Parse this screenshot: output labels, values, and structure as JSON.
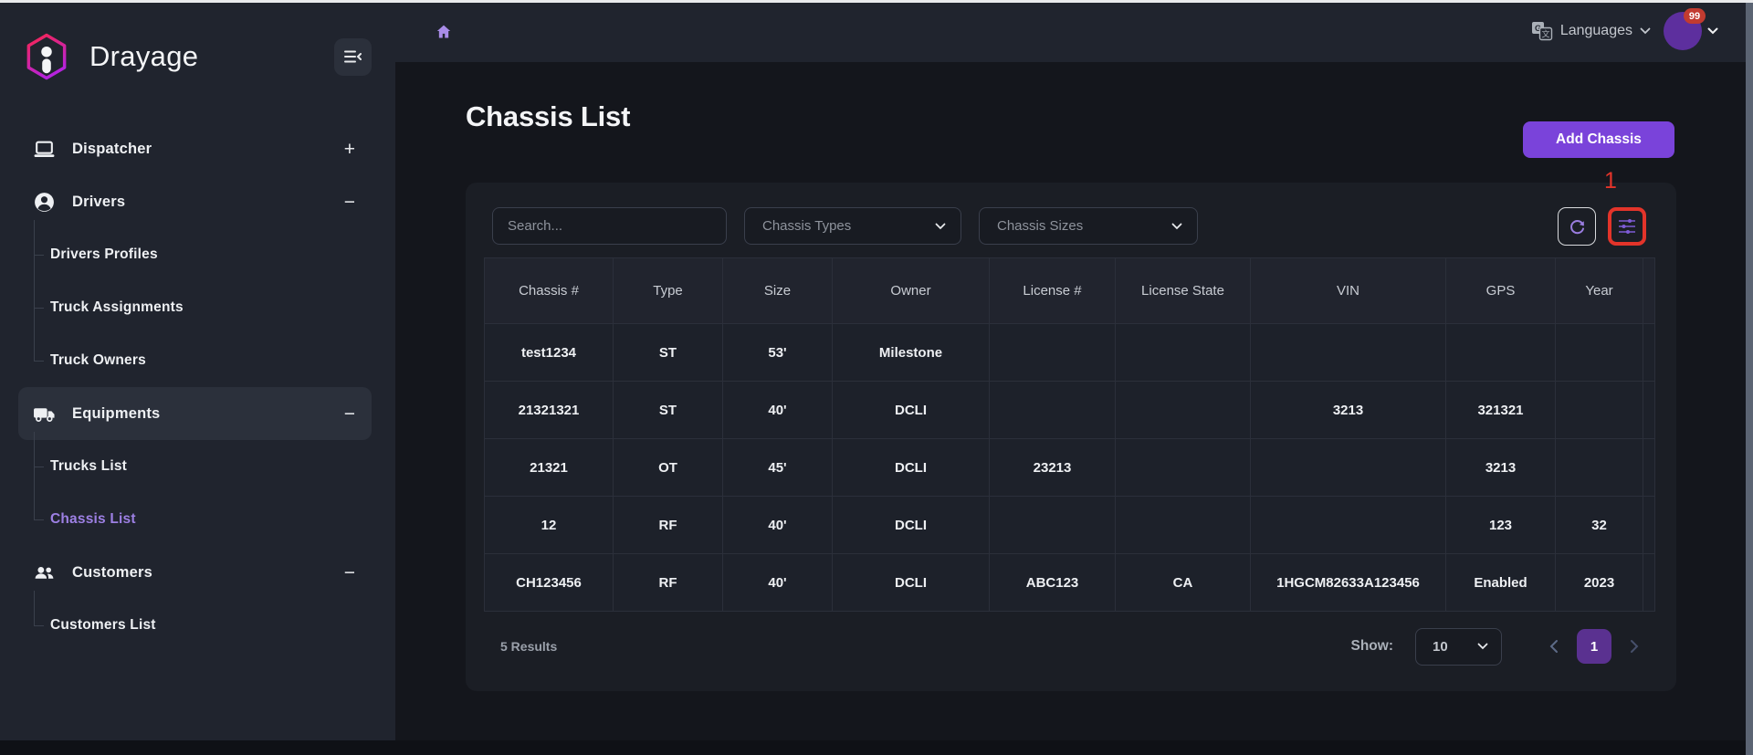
{
  "brand": {
    "name": "Drayage"
  },
  "topbar": {
    "languages_label": "Languages",
    "avatar_badge": "99"
  },
  "sidebar": {
    "items": [
      {
        "label": "Dispatcher",
        "icon": "laptop",
        "toggle": "+",
        "children": []
      },
      {
        "label": "Drivers",
        "icon": "person",
        "toggle": "−",
        "children": [
          "Drivers Profiles",
          "Truck Assignments",
          "Truck Owners"
        ]
      },
      {
        "label": "Equipments",
        "icon": "truck",
        "toggle": "−",
        "children": [
          "Trucks List",
          "Chassis List"
        ]
      },
      {
        "label": "Customers",
        "icon": "people",
        "toggle": "−",
        "children": [
          "Customers List"
        ]
      }
    ],
    "active_item": "Equipments",
    "active_child": "Chassis List"
  },
  "page": {
    "title": "Chassis List",
    "add_button_label": "Add Chassis"
  },
  "filters": {
    "search_placeholder": "Search...",
    "type_select_value": "Chassis Types",
    "size_select_value": "Chassis Sizes"
  },
  "annotation": {
    "label": "1"
  },
  "table": {
    "columns": [
      "Chassis #",
      "Type",
      "Size",
      "Owner",
      "License #",
      "License State",
      "VIN",
      "GPS",
      "Year"
    ],
    "rows": [
      [
        "test1234",
        "ST",
        "53'",
        "Milestone",
        "",
        "",
        "",
        "",
        ""
      ],
      [
        "21321321",
        "ST",
        "40'",
        "DCLI",
        "",
        "",
        "3213",
        "321321",
        ""
      ],
      [
        "21321",
        "OT",
        "45'",
        "DCLI",
        "23213",
        "",
        "",
        "3213",
        ""
      ],
      [
        "12",
        "RF",
        "40'",
        "DCLI",
        "",
        "",
        "",
        "123",
        "32"
      ],
      [
        "CH123456",
        "RF",
        "40'",
        "DCLI",
        "ABC123",
        "CA",
        "1HGCM82633A123456",
        "Enabled",
        "2023"
      ]
    ]
  },
  "footer": {
    "results": "5 Results",
    "show_label": "Show:",
    "page_size": "10",
    "current_page": "1"
  },
  "colors": {
    "accent_purple": "#7a43da",
    "active_link_purple": "#9d80e4",
    "annotation_red": "#e3342a",
    "badge_red": "#c23b30",
    "page_badge_purple": "#5a3190"
  }
}
